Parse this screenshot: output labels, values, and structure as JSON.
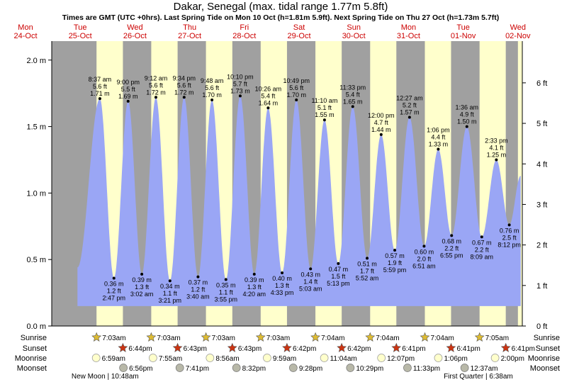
{
  "chart_data": {
    "type": "area",
    "title": "Dakar, Senegal (max. tidal range 1.77m 5.8ft)",
    "subtitle": "Times are GMT (UTC +0hrs). Last Spring Tide on Mon 10 Oct (h=1.81m 5.9ft). Next Spring Tide on Thu 27 Oct (h=1.73m 5.7ft)",
    "x_unit": "days from Mon 24-Oct 00:00",
    "xlim": [
      0,
      9
    ],
    "ylim": [
      0,
      2.1
    ],
    "grid": false,
    "days": [
      {
        "dow": "Mon",
        "date": "24-Oct"
      },
      {
        "dow": "Tue",
        "date": "25-Oct"
      },
      {
        "dow": "Wed",
        "date": "26-Oct"
      },
      {
        "dow": "Thu",
        "date": "27-Oct"
      },
      {
        "dow": "Fri",
        "date": "28-Oct"
      },
      {
        "dow": "Sat",
        "date": "29-Oct"
      },
      {
        "dow": "Sun",
        "date": "30-Oct"
      },
      {
        "dow": "Mon",
        "date": "31-Oct"
      },
      {
        "dow": "Tue",
        "date": "01-Nov"
      },
      {
        "dow": "Wed",
        "date": "02-Nov"
      }
    ],
    "y_ticks_m": [
      "0.0 m",
      "0.5 m",
      "1.0 m",
      "1.5 m",
      "2.0 m"
    ],
    "y_ticks_m_values": [
      0,
      0.5,
      1.0,
      1.5,
      2.0
    ],
    "y_ticks_ft": [
      "0 ft",
      "1 ft",
      "2 ft",
      "3 ft",
      "4 ft",
      "5 ft",
      "6 ft"
    ],
    "y_ticks_ft_values": [
      0,
      1,
      2,
      3,
      4,
      5,
      6
    ],
    "daylight": [
      [
        1.298,
        1.78
      ],
      [
        2.298,
        2.78
      ],
      [
        3.298,
        3.78
      ],
      [
        4.298,
        4.779
      ],
      [
        5.299,
        5.779
      ],
      [
        6.299,
        6.778
      ],
      [
        7.299,
        7.778
      ],
      [
        8.299,
        8.778
      ],
      [
        9.0,
        9.2
      ]
    ],
    "extremes": [
      {
        "t": 0.95,
        "h": 0.44,
        "type": "low",
        "time": "",
        "m": "",
        "ft": ""
      },
      {
        "t": 1.359,
        "h": 1.71,
        "type": "high",
        "time": "8:37 am",
        "m": "1.71 m",
        "ft": "5.6 ft"
      },
      {
        "t": 1.616,
        "h": 0.36,
        "type": "low",
        "time": "2:47 pm",
        "m": "0.36 m",
        "ft": "1.2 ft"
      },
      {
        "t": 1.875,
        "h": 1.69,
        "type": "high",
        "time": "9:00 pm",
        "m": "1.69 m",
        "ft": "5.5 ft"
      },
      {
        "t": 2.126,
        "h": 0.39,
        "type": "low",
        "time": "3:02 am",
        "m": "0.39 m",
        "ft": "1.3 ft"
      },
      {
        "t": 2.383,
        "h": 1.72,
        "type": "high",
        "time": "9:12 am",
        "m": "1.72 m",
        "ft": "5.6 ft"
      },
      {
        "t": 2.64,
        "h": 0.34,
        "type": "low",
        "time": "3:21 pm",
        "m": "0.34 m",
        "ft": "1.1 ft"
      },
      {
        "t": 2.899,
        "h": 1.72,
        "type": "high",
        "time": "9:34 pm",
        "m": "1.72 m",
        "ft": "5.6 ft"
      },
      {
        "t": 3.153,
        "h": 0.37,
        "type": "low",
        "time": "3:40 am",
        "m": "0.37 m",
        "ft": "1.2 ft"
      },
      {
        "t": 3.408,
        "h": 1.7,
        "type": "high",
        "time": "9:48 am",
        "m": "1.70 m",
        "ft": "5.6 ft"
      },
      {
        "t": 3.663,
        "h": 0.35,
        "type": "low",
        "time": "3:55 pm",
        "m": "0.35 m",
        "ft": "1.1 ft"
      },
      {
        "t": 3.924,
        "h": 1.73,
        "type": "high",
        "time": "10:10 pm",
        "m": "1.73 m",
        "ft": "5.7 ft"
      },
      {
        "t": 4.181,
        "h": 0.39,
        "type": "low",
        "time": "4:20 am",
        "m": "0.39 m",
        "ft": "1.3 ft"
      },
      {
        "t": 4.435,
        "h": 1.64,
        "type": "high",
        "time": "10:26 am",
        "m": "1.64 m",
        "ft": "5.4 ft"
      },
      {
        "t": 4.69,
        "h": 0.4,
        "type": "low",
        "time": "4:33 pm",
        "m": "0.40 m",
        "ft": "1.3 ft"
      },
      {
        "t": 4.951,
        "h": 1.7,
        "type": "high",
        "time": "10:49 pm",
        "m": "1.70 m",
        "ft": "5.6 ft"
      },
      {
        "t": 5.21,
        "h": 0.43,
        "type": "low",
        "time": "5:03 am",
        "m": "0.43 m",
        "ft": "1.4 ft"
      },
      {
        "t": 5.465,
        "h": 1.55,
        "type": "high",
        "time": "11:10 am",
        "m": "1.55 m",
        "ft": "5.1 ft"
      },
      {
        "t": 5.717,
        "h": 0.47,
        "type": "low",
        "time": "5:13 pm",
        "m": "0.47 m",
        "ft": "1.5 ft"
      },
      {
        "t": 5.981,
        "h": 1.65,
        "type": "high",
        "time": "11:33 pm",
        "m": "1.65 m",
        "ft": "5.4 ft"
      },
      {
        "t": 6.244,
        "h": 0.51,
        "type": "low",
        "time": "5:52 am",
        "m": "0.51 m",
        "ft": "1.7 ft"
      },
      {
        "t": 6.5,
        "h": 1.44,
        "type": "high",
        "time": "12:00 pm",
        "m": "1.44 m",
        "ft": "4.7 ft"
      },
      {
        "t": 6.749,
        "h": 0.57,
        "type": "low",
        "time": "5:59 pm",
        "m": "0.57 m",
        "ft": "1.9 ft"
      },
      {
        "t": 7.019,
        "h": 1.57,
        "type": "high",
        "time": "12:27 am",
        "m": "1.57 m",
        "ft": "5.2 ft"
      },
      {
        "t": 7.285,
        "h": 0.6,
        "type": "low",
        "time": "6:51 am",
        "m": "0.60 m",
        "ft": "2.0 ft"
      },
      {
        "t": 7.544,
        "h": 1.33,
        "type": "high",
        "time": "1:06 pm",
        "m": "1.33 m",
        "ft": "4.4 ft"
      },
      {
        "t": 7.788,
        "h": 0.68,
        "type": "low",
        "time": "6:55 pm",
        "m": "0.68 m",
        "ft": "2.2 ft"
      },
      {
        "t": 8.067,
        "h": 1.5,
        "type": "high",
        "time": "1:36 am",
        "m": "1.50 m",
        "ft": "4.9 ft"
      },
      {
        "t": 8.339,
        "h": 0.67,
        "type": "low",
        "time": "8:09 am",
        "m": "0.67 m",
        "ft": "2.2 ft"
      },
      {
        "t": 8.606,
        "h": 1.25,
        "type": "high",
        "time": "2:33 pm",
        "m": "1.25 m",
        "ft": "4.1 ft"
      },
      {
        "t": 8.842,
        "h": 0.76,
        "type": "low",
        "time": "8:12 pm",
        "m": "0.76 m",
        "ft": "2.5 ft"
      },
      {
        "t": 9.05,
        "h": 1.13,
        "type": "high",
        "time": "",
        "m": "",
        "ft": ""
      }
    ]
  },
  "footer": {
    "row_labels": {
      "sunrise": "Sunrise",
      "sunset": "Sunset",
      "moonrise": "Moonrise",
      "moonset": "Moonset"
    },
    "sunrise": [
      {
        "t": 1.298,
        "time": "7:03am"
      },
      {
        "t": 2.298,
        "time": "7:03am"
      },
      {
        "t": 3.298,
        "time": "7:03am"
      },
      {
        "t": 4.298,
        "time": "7:03am"
      },
      {
        "t": 5.299,
        "time": "7:04am"
      },
      {
        "t": 6.299,
        "time": "7:04am"
      },
      {
        "t": 7.299,
        "time": "7:04am"
      },
      {
        "t": 8.299,
        "time": "7:05am"
      }
    ],
    "sunset": [
      {
        "t": 1.78,
        "time": "6:44pm"
      },
      {
        "t": 2.78,
        "time": "6:43pm"
      },
      {
        "t": 3.78,
        "time": "6:43pm"
      },
      {
        "t": 4.779,
        "time": "6:42pm"
      },
      {
        "t": 5.779,
        "time": "6:42pm"
      },
      {
        "t": 6.778,
        "time": "6:41pm"
      },
      {
        "t": 7.778,
        "time": "6:41pm"
      },
      {
        "t": 8.778,
        "time": "6:41pm"
      }
    ],
    "moonrise": [
      {
        "t": 1.291,
        "time": "6:59am"
      },
      {
        "t": 2.33,
        "time": "7:55am"
      },
      {
        "t": 3.372,
        "time": "8:56am"
      },
      {
        "t": 4.416,
        "time": "9:59am"
      },
      {
        "t": 5.461,
        "time": "11:04am"
      },
      {
        "t": 6.505,
        "time": "12:07pm"
      },
      {
        "t": 7.545,
        "time": "1:06pm"
      },
      {
        "t": 8.583,
        "time": "2:00pm"
      }
    ],
    "moonset": [
      {
        "t": 1.789,
        "time": "6:56pm"
      },
      {
        "t": 2.82,
        "time": "7:41pm"
      },
      {
        "t": 3.856,
        "time": "8:32pm"
      },
      {
        "t": 4.894,
        "time": "9:28pm"
      },
      {
        "t": 5.937,
        "time": "10:29pm"
      },
      {
        "t": 6.981,
        "time": "11:33pm"
      },
      {
        "t": 8.026,
        "time": "12:37am"
      }
    ],
    "moon_phases": [
      {
        "t": 1.455,
        "label": "New Moon | 10:48am"
      },
      {
        "t": 8.276,
        "label": "First Quarter | 6:38am"
      }
    ]
  },
  "colors": {
    "night": "#a0a0a0",
    "day": "#ffffcc",
    "tide_fill": "#9aa6f5",
    "day_label": "#cc0000",
    "sunrise_star": "#ddbb33",
    "sunset_star": "#cc3311",
    "moonrise_disc": "#ffffcc",
    "moonset_disc": "#b8b8a8"
  }
}
